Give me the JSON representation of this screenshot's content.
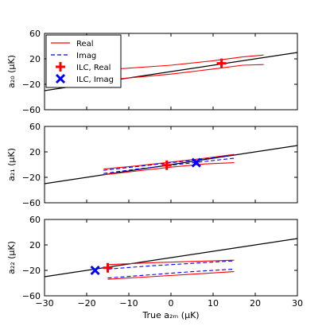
{
  "chart_data": {
    "type": "line",
    "xlabel": "True a₂ₘ (μK)",
    "xlim": [
      -30,
      30
    ],
    "xticks": [
      "−30",
      "−20",
      "−10",
      "0",
      "10",
      "20",
      "30"
    ],
    "yticks": [
      "−60",
      "−20",
      "20",
      "60"
    ],
    "legend": {
      "placement": "top-left",
      "entries": [
        {
          "label": "Real",
          "style": "red-solid"
        },
        {
          "label": "Imag",
          "style": "blue-dashed"
        },
        {
          "label": "ILC, Real",
          "style": "red-plus"
        },
        {
          "label": "ILC, Imag",
          "style": "blue-x"
        }
      ]
    },
    "colors": {
      "real": "#ff0000",
      "imag": "#0000ff",
      "line": "#000000"
    },
    "panels": [
      {
        "ylabel": "a₂₀ (μK)",
        "ylim": [
          -60,
          60
        ],
        "reference_line": [
          [
            -30,
            -30
          ],
          [
            30,
            30
          ]
        ],
        "series": [
          {
            "kind": "real",
            "points": [
              [
                -26,
                -19
              ],
              [
                -15,
                -13
              ],
              [
                0,
                -4
              ],
              [
                10,
                4
              ],
              [
                17,
                10
              ],
              [
                22,
                11
              ]
            ]
          },
          {
            "kind": "real",
            "points": [
              [
                -26,
                -4
              ],
              [
                -15,
                3
              ],
              [
                0,
                10
              ],
              [
                10,
                17
              ],
              [
                17,
                23
              ],
              [
                22,
                26
              ]
            ]
          }
        ],
        "ilc_real": [
          12,
          13
        ],
        "ilc_imag": null
      },
      {
        "ylabel": "a₂₁ (μK)",
        "ylim": [
          -60,
          60
        ],
        "reference_line": [
          [
            -30,
            -30
          ],
          [
            30,
            30
          ]
        ],
        "series": [
          {
            "kind": "real",
            "points": [
              [
                -16,
                -16
              ],
              [
                -8,
                -10
              ],
              [
                0,
                -4
              ],
              [
                8,
                1
              ],
              [
                15,
                3
              ]
            ]
          },
          {
            "kind": "real",
            "points": [
              [
                -16,
                -7
              ],
              [
                -8,
                -2
              ],
              [
                0,
                4
              ],
              [
                8,
                10
              ],
              [
                15,
                16
              ]
            ]
          },
          {
            "kind": "imag",
            "points": [
              [
                -16,
                -14
              ],
              [
                -8,
                -7
              ],
              [
                0,
                -1
              ],
              [
                8,
                5
              ],
              [
                15,
                10
              ]
            ]
          },
          {
            "kind": "imag",
            "points": [
              [
                -16,
                -9
              ],
              [
                -8,
                -3
              ],
              [
                0,
                3
              ],
              [
                8,
                9
              ],
              [
                15,
                15
              ]
            ]
          }
        ],
        "ilc_real": [
          -1,
          -1
        ],
        "ilc_imag": [
          6,
          3
        ]
      },
      {
        "ylabel": "a₂₂ (μK)",
        "ylim": [
          -60,
          60
        ],
        "reference_line": [
          [
            -30,
            -30
          ],
          [
            30,
            30
          ]
        ],
        "series": [
          {
            "kind": "real",
            "points": [
              [
                -15,
                -34
              ],
              [
                -5,
                -30
              ],
              [
                5,
                -26
              ],
              [
                15,
                -22
              ]
            ]
          },
          {
            "kind": "real",
            "points": [
              [
                -15,
                -11
              ],
              [
                -5,
                -8
              ],
              [
                5,
                -6
              ],
              [
                15,
                -4
              ]
            ]
          },
          {
            "kind": "imag",
            "points": [
              [
                -15,
                -32
              ],
              [
                -5,
                -27
              ],
              [
                5,
                -22
              ],
              [
                15,
                -18
              ]
            ]
          },
          {
            "kind": "imag",
            "points": [
              [
                -15,
                -18
              ],
              [
                -5,
                -13
              ],
              [
                5,
                -9
              ],
              [
                15,
                -5
              ]
            ]
          }
        ],
        "ilc_real": [
          -15,
          -16
        ],
        "ilc_imag": [
          -18,
          -20
        ]
      }
    ]
  }
}
